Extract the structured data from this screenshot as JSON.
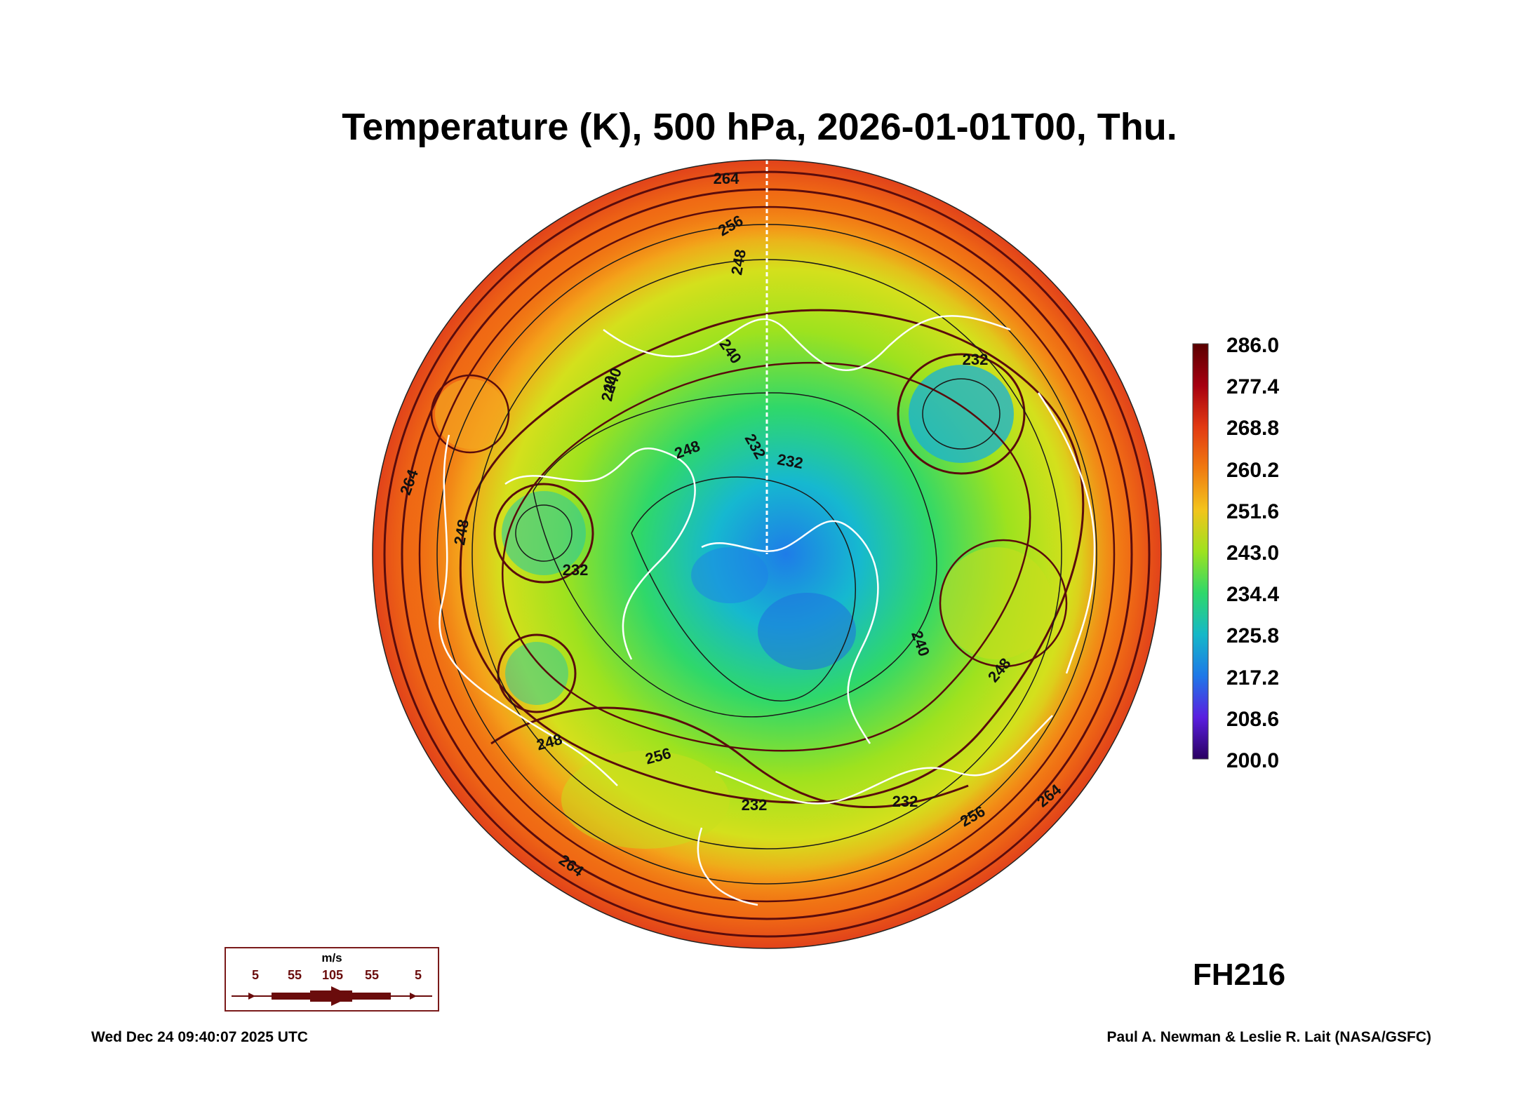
{
  "title": "Temperature (K), 500 hPa, 2026-01-01T00, Thu.",
  "colorbar": {
    "ticks": [
      "286.0",
      "277.4",
      "268.8",
      "260.2",
      "251.6",
      "243.0",
      "234.4",
      "225.8",
      "217.2",
      "208.6",
      "200.0"
    ],
    "colors": [
      "#5a0000",
      "#a60010",
      "#e23a12",
      "#f07a10",
      "#f3c41c",
      "#9ee21e",
      "#2fd86a",
      "#15b8c8",
      "#1e78e8",
      "#5a1ee0",
      "#2a0060"
    ]
  },
  "contour_labels": [
    "264",
    "256",
    "248",
    "240",
    "232",
    "232",
    "232",
    "248",
    "240",
    "264",
    "240",
    "232",
    "248",
    "232",
    "256",
    "264",
    "248",
    "232",
    "240",
    "248",
    "256",
    "264"
  ],
  "forecast_hour": "FH216",
  "wind_legend": {
    "unit": "m/s",
    "values": [
      "5",
      "55",
      "105",
      "55",
      "5"
    ]
  },
  "footer": {
    "timestamp": "Wed Dec 24 09:40:07 2025 UTC",
    "credit": "Paul A. Newman & Leslie R. Lait (NASA/GSFC)"
  }
}
